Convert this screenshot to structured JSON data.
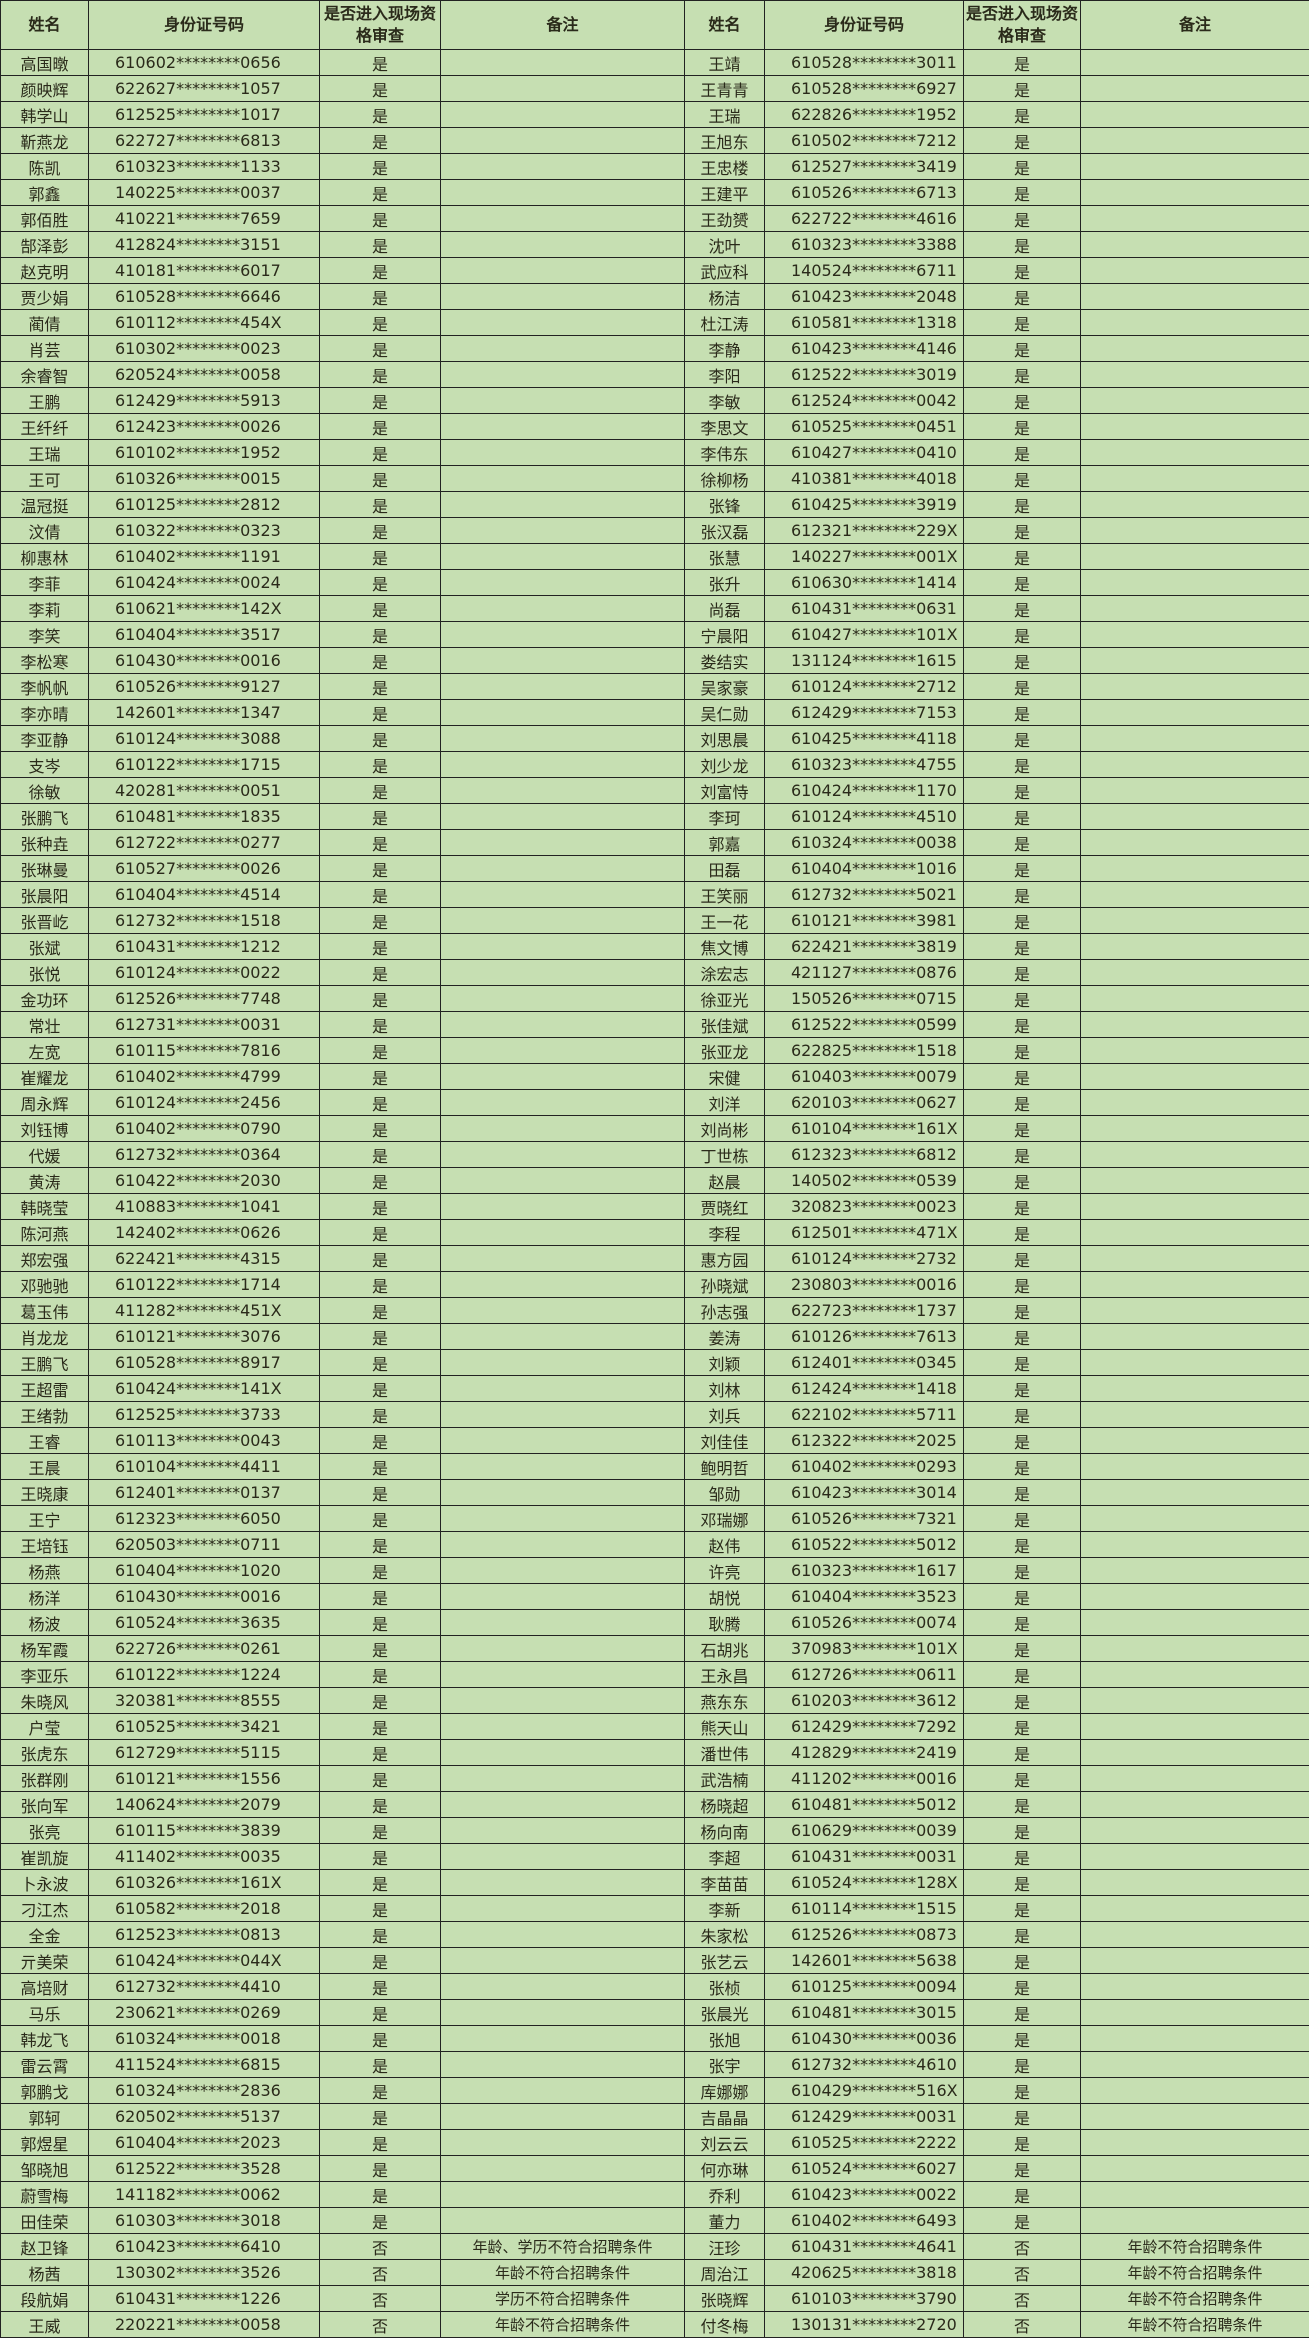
{
  "headers": [
    "姓名",
    "身份证号码",
    "是否进入现场资格审查",
    "备注",
    "姓名",
    "身份证号码",
    "是否进入现场资格审查",
    "备注"
  ],
  "rows": [
    [
      "高国暾",
      "610602********0656",
      "是",
      "",
      "王靖",
      "610528********3011",
      "是",
      ""
    ],
    [
      "颜映辉",
      "622627********1057",
      "是",
      "",
      "王青青",
      "610528********6927",
      "是",
      ""
    ],
    [
      "韩学山",
      "612525********1017",
      "是",
      "",
      "王瑞",
      "622826********1952",
      "是",
      ""
    ],
    [
      "靳燕龙",
      "622727********6813",
      "是",
      "",
      "王旭东",
      "610502********7212",
      "是",
      ""
    ],
    [
      "陈凯",
      "610323********1133",
      "是",
      "",
      "王忠楼",
      "612527********3419",
      "是",
      ""
    ],
    [
      "郭鑫",
      "140225********0037",
      "是",
      "",
      "王建平",
      "610526********6713",
      "是",
      ""
    ],
    [
      "郭佰胜",
      "410221********7659",
      "是",
      "",
      "王劲赟",
      "622722********4616",
      "是",
      ""
    ],
    [
      "郜泽彭",
      "412824********3151",
      "是",
      "",
      "沈叶",
      "610323********3388",
      "是",
      ""
    ],
    [
      "赵克明",
      "410181********6017",
      "是",
      "",
      "武应科",
      "140524********6711",
      "是",
      ""
    ],
    [
      "贾少娟",
      "610528********6646",
      "是",
      "",
      "杨洁",
      "610423********2048",
      "是",
      ""
    ],
    [
      "蔺倩",
      "610112********454X",
      "是",
      "",
      "杜江涛",
      "610581********1318",
      "是",
      ""
    ],
    [
      "肖芸",
      "610302********0023",
      "是",
      "",
      "李静",
      "610423********4146",
      "是",
      ""
    ],
    [
      "余睿智",
      "620524********0058",
      "是",
      "",
      "李阳",
      "612522********3019",
      "是",
      ""
    ],
    [
      "王鹏",
      "612429********5913",
      "是",
      "",
      "李敏",
      "612524********0042",
      "是",
      ""
    ],
    [
      "王纤纤",
      "612423********0026",
      "是",
      "",
      "李思文",
      "610525********0451",
      "是",
      ""
    ],
    [
      "王瑞",
      "610102********1952",
      "是",
      "",
      "李伟东",
      "610427********0410",
      "是",
      ""
    ],
    [
      "王可",
      "610326********0015",
      "是",
      "",
      "徐柳杨",
      "410381********4018",
      "是",
      ""
    ],
    [
      "温冠挺",
      "610125********2812",
      "是",
      "",
      "张锋",
      "610425********3919",
      "是",
      ""
    ],
    [
      "汶倩",
      "610322********0323",
      "是",
      "",
      "张汉磊",
      "612321********229X",
      "是",
      ""
    ],
    [
      "柳惠林",
      "610402********1191",
      "是",
      "",
      "张慧",
      "140227********001X",
      "是",
      ""
    ],
    [
      "李菲",
      "610424********0024",
      "是",
      "",
      "张升",
      "610630********1414",
      "是",
      ""
    ],
    [
      "李莉",
      "610621********142X",
      "是",
      "",
      "尚磊",
      "610431********0631",
      "是",
      ""
    ],
    [
      "李笑",
      "610404********3517",
      "是",
      "",
      "宁晨阳",
      "610427********101X",
      "是",
      ""
    ],
    [
      "李松寒",
      "610430********0016",
      "是",
      "",
      "娄结实",
      "131124********1615",
      "是",
      ""
    ],
    [
      "李帆帆",
      "610526********9127",
      "是",
      "",
      "吴家豪",
      "610124********2712",
      "是",
      ""
    ],
    [
      "李亦晴",
      "142601********1347",
      "是",
      "",
      "吴仁勋",
      "612429********7153",
      "是",
      ""
    ],
    [
      "李亚静",
      "610124********3088",
      "是",
      "",
      "刘思晨",
      "610425********4118",
      "是",
      ""
    ],
    [
      "支岑",
      "610122********1715",
      "是",
      "",
      "刘少龙",
      "610323********4755",
      "是",
      ""
    ],
    [
      "徐敏",
      "420281********0051",
      "是",
      "",
      "刘富恃",
      "610424********1170",
      "是",
      ""
    ],
    [
      "张鹏飞",
      "610481********1835",
      "是",
      "",
      "李珂",
      "610124********4510",
      "是",
      ""
    ],
    [
      "张种垚",
      "612722********0277",
      "是",
      "",
      "郭嘉",
      "610324********0038",
      "是",
      ""
    ],
    [
      "张琳曼",
      "610527********0026",
      "是",
      "",
      "田磊",
      "610404********1016",
      "是",
      ""
    ],
    [
      "张晨阳",
      "610404********4514",
      "是",
      "",
      "王笑丽",
      "612732********5021",
      "是",
      ""
    ],
    [
      "张晋屹",
      "612732********1518",
      "是",
      "",
      "王一花",
      "610121********3981",
      "是",
      ""
    ],
    [
      "张斌",
      "610431********1212",
      "是",
      "",
      "焦文博",
      "622421********3819",
      "是",
      ""
    ],
    [
      "张悦",
      "610124********0022",
      "是",
      "",
      "涂宏志",
      "421127********0876",
      "是",
      ""
    ],
    [
      "金功环",
      "612526********7748",
      "是",
      "",
      "徐亚光",
      "150526********0715",
      "是",
      ""
    ],
    [
      "常壮",
      "612731********0031",
      "是",
      "",
      "张佳斌",
      "612522********0599",
      "是",
      ""
    ],
    [
      "左宽",
      "610115********7816",
      "是",
      "",
      "张亚龙",
      "622825********1518",
      "是",
      ""
    ],
    [
      "崔耀龙",
      "610402********4799",
      "是",
      "",
      "宋健",
      "610403********0079",
      "是",
      ""
    ],
    [
      "周永辉",
      "610124********2456",
      "是",
      "",
      "刘洋",
      "620103********0627",
      "是",
      ""
    ],
    [
      "刘钰博",
      "610402********0790",
      "是",
      "",
      "刘尚彬",
      "610104********161X",
      "是",
      ""
    ],
    [
      "代媛",
      "612732********0364",
      "是",
      "",
      "丁世栋",
      "612323********6812",
      "是",
      ""
    ],
    [
      "黄涛",
      "610422********2030",
      "是",
      "",
      "赵晨",
      "140502********0539",
      "是",
      ""
    ],
    [
      "韩晓莹",
      "410883********1041",
      "是",
      "",
      "贾晓红",
      "320823********0023",
      "是",
      ""
    ],
    [
      "陈河燕",
      "142402********0626",
      "是",
      "",
      "李程",
      "612501********471X",
      "是",
      ""
    ],
    [
      "郑宏强",
      "622421********4315",
      "是",
      "",
      "惠方园",
      "610124********2732",
      "是",
      ""
    ],
    [
      "邓驰驰",
      "610122********1714",
      "是",
      "",
      "孙晓斌",
      "230803********0016",
      "是",
      ""
    ],
    [
      "葛玉伟",
      "411282********451X",
      "是",
      "",
      "孙志强",
      "622723********1737",
      "是",
      ""
    ],
    [
      "肖龙龙",
      "610121********3076",
      "是",
      "",
      "姜涛",
      "610126********7613",
      "是",
      ""
    ],
    [
      "王鹏飞",
      "610528********8917",
      "是",
      "",
      "刘颖",
      "612401********0345",
      "是",
      ""
    ],
    [
      "王超雷",
      "610424********141X",
      "是",
      "",
      "刘林",
      "612424********1418",
      "是",
      ""
    ],
    [
      "王绪勃",
      "612525********3733",
      "是",
      "",
      "刘兵",
      "622102********5711",
      "是",
      ""
    ],
    [
      "王睿",
      "610113********0043",
      "是",
      "",
      "刘佳佳",
      "612322********2025",
      "是",
      ""
    ],
    [
      "王晨",
      "610104********4411",
      "是",
      "",
      "鲍明哲",
      "610402********0293",
      "是",
      ""
    ],
    [
      "王晓康",
      "612401********0137",
      "是",
      "",
      "邹勋",
      "610423********3014",
      "是",
      ""
    ],
    [
      "王宁",
      "612323********6050",
      "是",
      "",
      "邓瑞娜",
      "610526********7321",
      "是",
      ""
    ],
    [
      "王培钰",
      "620503********0711",
      "是",
      "",
      "赵伟",
      "610522********5012",
      "是",
      ""
    ],
    [
      "杨燕",
      "610404********1020",
      "是",
      "",
      "许亮",
      "610323********1617",
      "是",
      ""
    ],
    [
      "杨洋",
      "610430********0016",
      "是",
      "",
      "胡悦",
      "610404********3523",
      "是",
      ""
    ],
    [
      "杨波",
      "610524********3635",
      "是",
      "",
      "耿腾",
      "610526********0074",
      "是",
      ""
    ],
    [
      "杨军霞",
      "622726********0261",
      "是",
      "",
      "石胡兆",
      "370983********101X",
      "是",
      ""
    ],
    [
      "李亚乐",
      "610122********1224",
      "是",
      "",
      "王永昌",
      "612726********0611",
      "是",
      ""
    ],
    [
      "朱晓风",
      "320381********8555",
      "是",
      "",
      "燕东东",
      "610203********3612",
      "是",
      ""
    ],
    [
      "户莹",
      "610525********3421",
      "是",
      "",
      "熊天山",
      "612429********7292",
      "是",
      ""
    ],
    [
      "张虎东",
      "612729********5115",
      "是",
      "",
      "潘世伟",
      "412829********2419",
      "是",
      ""
    ],
    [
      "张群刚",
      "610121********1556",
      "是",
      "",
      "武浩楠",
      "411202********0016",
      "是",
      ""
    ],
    [
      "张向军",
      "140624********2079",
      "是",
      "",
      "杨晓超",
      "610481********5012",
      "是",
      ""
    ],
    [
      "张亮",
      "610115********3839",
      "是",
      "",
      "杨向南",
      "610629********0039",
      "是",
      ""
    ],
    [
      "崔凯旋",
      "411402********0035",
      "是",
      "",
      "李超",
      "610431********0031",
      "是",
      ""
    ],
    [
      "卜永波",
      "610326********161X",
      "是",
      "",
      "李苗苗",
      "610524********128X",
      "是",
      ""
    ],
    [
      "刁江杰",
      "610582********2018",
      "是",
      "",
      "李新",
      "610114********1515",
      "是",
      ""
    ],
    [
      "全金",
      "612523********0813",
      "是",
      "",
      "朱家松",
      "612526********0873",
      "是",
      ""
    ],
    [
      "亓美荣",
      "610424********044X",
      "是",
      "",
      "张艺云",
      "142601********5638",
      "是",
      ""
    ],
    [
      "高培财",
      "612732********4410",
      "是",
      "",
      "张桢",
      "610125********0094",
      "是",
      ""
    ],
    [
      "马乐",
      "230621********0269",
      "是",
      "",
      "张晨光",
      "610481********3015",
      "是",
      ""
    ],
    [
      "韩龙飞",
      "610324********0018",
      "是",
      "",
      "张旭",
      "610430********0036",
      "是",
      ""
    ],
    [
      "雷云霄",
      "411524********6815",
      "是",
      "",
      "张宇",
      "612732********4610",
      "是",
      ""
    ],
    [
      "郭鹏戈",
      "610324********2836",
      "是",
      "",
      "库娜娜",
      "610429********516X",
      "是",
      ""
    ],
    [
      "郭轲",
      "620502********5137",
      "是",
      "",
      "吉晶晶",
      "612429********0031",
      "是",
      ""
    ],
    [
      "郭煜星",
      "610404********2023",
      "是",
      "",
      "刘云云",
      "610525********2222",
      "是",
      ""
    ],
    [
      "邹晓旭",
      "612522********3528",
      "是",
      "",
      "何亦琳",
      "610524********6027",
      "是",
      ""
    ],
    [
      "蔚雪梅",
      "141182********0062",
      "是",
      "",
      "乔利",
      "610423********0022",
      "是",
      ""
    ],
    [
      "田佳荣",
      "610303********3018",
      "是",
      "",
      "董力",
      "610402********6493",
      "是",
      ""
    ],
    [
      "赵卫锋",
      "610423********6410",
      "否",
      "年龄、学历不符合招聘条件",
      "汪珍",
      "610431********4641",
      "否",
      "年龄不符合招聘条件"
    ],
    [
      "杨茜",
      "130302********3526",
      "否",
      "年龄不符合招聘条件",
      "周治江",
      "420625********3818",
      "否",
      "年龄不符合招聘条件"
    ],
    [
      "段航娟",
      "610431********1226",
      "否",
      "学历不符合招聘条件",
      "张晓辉",
      "610103********3790",
      "否",
      "年龄不符合招聘条件"
    ],
    [
      "王威",
      "220221********0058",
      "否",
      "年龄不符合招聘条件",
      "付冬梅",
      "130131********2720",
      "否",
      "年龄不符合招聘条件"
    ]
  ],
  "colors": {
    "cell_background": "#c6dfb2",
    "border": "#222222"
  }
}
